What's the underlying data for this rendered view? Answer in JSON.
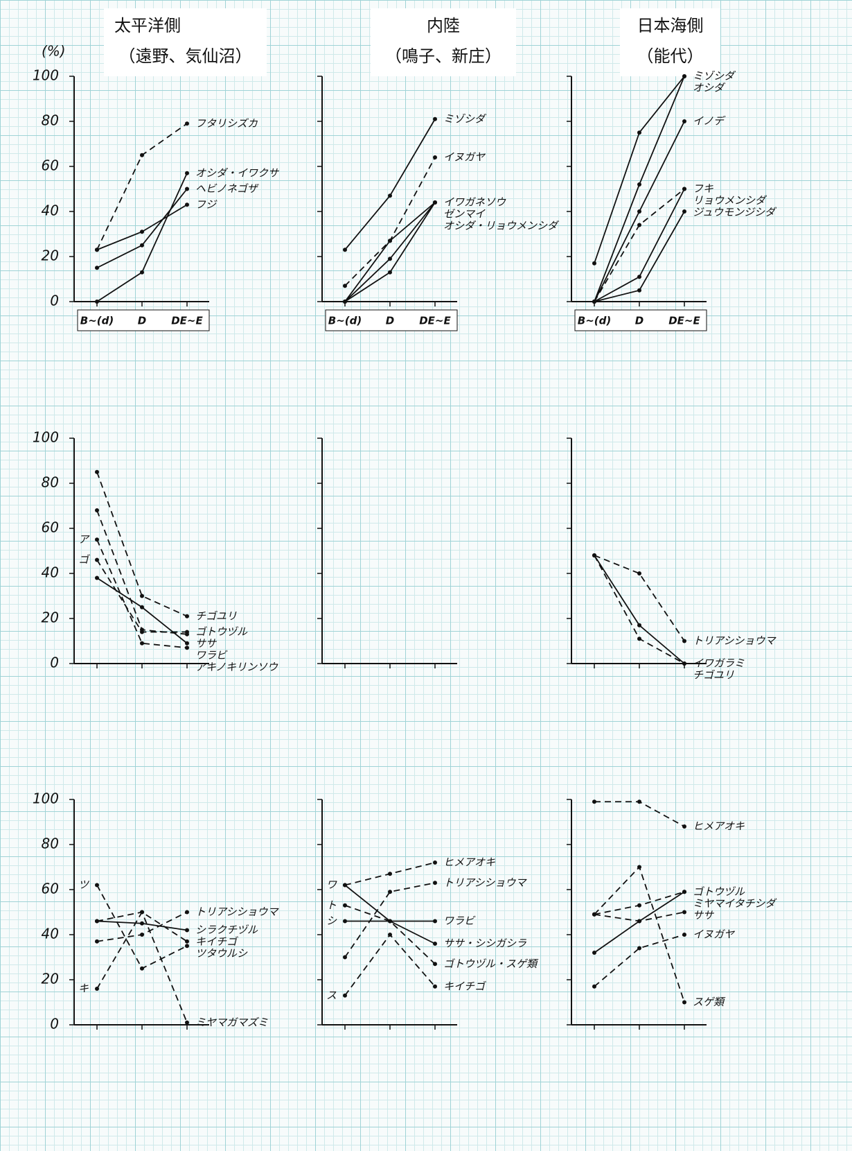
{
  "headers": [
    {
      "title": "太平洋側",
      "subtitle": "（遠野、気仙沼）"
    },
    {
      "title": "内陸",
      "subtitle": "（鳴子、新庄）"
    },
    {
      "title": "日本海側",
      "subtitle": "（能代）"
    }
  ],
  "y_unit": "(%)",
  "chart_data": [
    {
      "type": "line",
      "categories": [
        "B~(d)",
        "D",
        "DE~E"
      ],
      "ylim": [
        0,
        100
      ],
      "yticks": [
        0,
        20,
        40,
        60,
        80,
        100
      ],
      "ytick_labels": true,
      "series": [
        {
          "name": "フタリシズカ",
          "style": "dashed",
          "color": "#111",
          "values": [
            23,
            65,
            79
          ]
        },
        {
          "name": "オシダ・イワクサ",
          "style": "solid",
          "color": "#111",
          "values": [
            0,
            13,
            57
          ]
        },
        {
          "name": "ヘビノネゴザ",
          "style": "solid",
          "color": "#111",
          "values": [
            15,
            25,
            50
          ]
        },
        {
          "name": "フジ",
          "style": "solid",
          "color": "#111",
          "values": [
            23,
            31,
            43
          ]
        }
      ]
    },
    {
      "type": "line",
      "categories": [
        "B~(d)",
        "D",
        "DE~E"
      ],
      "ylim": [
        0,
        100
      ],
      "yticks": [
        0,
        20,
        40,
        60,
        80,
        100
      ],
      "ytick_labels": false,
      "series": [
        {
          "name": "ミゾシダ",
          "style": "solid",
          "color": "#111",
          "values": [
            23,
            47,
            81
          ]
        },
        {
          "name": "イヌガヤ",
          "style": "dashed",
          "color": "#111",
          "values": [
            7,
            27,
            64
          ]
        },
        {
          "name": "イワガネソウ",
          "style": "solid",
          "color": "#111",
          "values": [
            0,
            27,
            44
          ]
        },
        {
          "name": "ゼンマイ",
          "style": "solid",
          "color": "#111",
          "values": [
            0,
            19,
            44
          ]
        },
        {
          "name": "オシダ・リョウメンシダ",
          "style": "solid",
          "color": "#111",
          "values": [
            0,
            13,
            44
          ]
        }
      ]
    },
    {
      "type": "line",
      "categories": [
        "B~(d)",
        "D",
        "DE~E"
      ],
      "ylim": [
        0,
        100
      ],
      "yticks": [
        0,
        20,
        40,
        60,
        80,
        100
      ],
      "ytick_labels": false,
      "series": [
        {
          "name": "ミゾシダ",
          "style": "solid",
          "color": "#111",
          "values": [
            17,
            75,
            100
          ]
        },
        {
          "name": "オシダ",
          "style": "solid",
          "color": "#111",
          "values": [
            0,
            52,
            100
          ]
        },
        {
          "name": "イノデ",
          "style": "solid",
          "color": "#111",
          "values": [
            0,
            40,
            80
          ]
        },
        {
          "name": "フキ",
          "style": "dashed",
          "color": "#111",
          "values": [
            0,
            34,
            50
          ]
        },
        {
          "name": "リョウメンシダ",
          "style": "solid",
          "color": "#111",
          "values": [
            0,
            11,
            50
          ]
        },
        {
          "name": "ジュウモンジシダ",
          "style": "solid",
          "color": "#111",
          "values": [
            0,
            5,
            40
          ]
        }
      ]
    },
    {
      "type": "line",
      "categories": [
        null,
        null,
        null
      ],
      "ylim": [
        0,
        100
      ],
      "yticks": [
        0,
        20,
        40,
        60,
        80,
        100
      ],
      "ytick_labels": true,
      "start_labels": [
        {
          "text": "ア",
          "value": 55
        },
        {
          "text": "ゴ",
          "value": 46
        }
      ],
      "series": [
        {
          "name": "チゴユリ",
          "style": "dashed",
          "color": "#111",
          "values": [
            85,
            30,
            21
          ]
        },
        {
          "name": "ゴトウヅル",
          "style": "dashed",
          "color": "#111",
          "values": [
            46,
            14,
            14
          ]
        },
        {
          "name": "ササ",
          "style": "dashed",
          "color": "#111",
          "values": [
            68,
            15,
            13
          ]
        },
        {
          "name": "ワラビ",
          "style": "solid",
          "color": "#111",
          "values": [
            38,
            25,
            9
          ]
        },
        {
          "name": "アキノキリンソウ",
          "style": "dashed",
          "color": "#111",
          "values": [
            55,
            9,
            7
          ]
        }
      ]
    },
    {
      "type": "line",
      "categories": [
        null,
        null,
        null
      ],
      "ylim": [
        0,
        100
      ],
      "yticks": [
        0,
        20,
        40,
        60,
        80,
        100
      ],
      "ytick_labels": false,
      "series": []
    },
    {
      "type": "line",
      "categories": [
        null,
        null,
        null
      ],
      "ylim": [
        0,
        100
      ],
      "yticks": [
        0,
        20,
        40,
        60,
        80,
        100
      ],
      "ytick_labels": false,
      "series": [
        {
          "name": "トリアシショウマ",
          "style": "dashed",
          "color": "#111",
          "values": [
            48,
            40,
            10
          ]
        },
        {
          "name": "イワガラミ",
          "style": "solid",
          "color": "#111",
          "values": [
            48,
            17,
            0
          ]
        },
        {
          "name": "チゴユリ",
          "style": "dashed",
          "color": "#111",
          "values": [
            48,
            11,
            0
          ]
        }
      ]
    },
    {
      "type": "line",
      "categories": [
        null,
        null,
        null
      ],
      "ylim": [
        0,
        100
      ],
      "yticks": [
        0,
        20,
        40,
        60,
        80,
        100
      ],
      "ytick_labels": true,
      "start_labels": [
        {
          "text": "ツ",
          "value": 62
        },
        {
          "text": "キ",
          "value": 16
        }
      ],
      "series": [
        {
          "name": "トリアシショウマ",
          "style": "dashed",
          "color": "#111",
          "values": [
            37,
            40,
            50
          ]
        },
        {
          "name": "シラクチヅル",
          "style": "solid",
          "color": "#111",
          "values": [
            46,
            45,
            42
          ]
        },
        {
          "name": "キイチゴ",
          "style": "dashed",
          "color": "#111",
          "values": [
            16,
            50,
            37
          ]
        },
        {
          "name": "ツタウルシ",
          "style": "dashed",
          "color": "#111",
          "values": [
            62,
            25,
            35
          ]
        },
        {
          "name": "ミヤマガマズミ",
          "style": "dashed",
          "color": "#111",
          "values": [
            46,
            50,
            1
          ]
        }
      ]
    },
    {
      "type": "line",
      "categories": [
        null,
        null,
        null
      ],
      "ylim": [
        0,
        100
      ],
      "yticks": [
        0,
        20,
        40,
        60,
        80,
        100
      ],
      "ytick_labels": false,
      "start_labels": [
        {
          "text": "ワ",
          "value": 62
        },
        {
          "text": "ト",
          "value": 53
        },
        {
          "text": "シ",
          "value": 46
        },
        {
          "text": "ス",
          "value": 13
        }
      ],
      "series": [
        {
          "name": "ヒメアオキ",
          "style": "dashed",
          "color": "#111",
          "values": [
            62,
            67,
            72
          ]
        },
        {
          "name": "トリアシショウマ",
          "style": "dashed",
          "color": "#111",
          "values": [
            30,
            59,
            63
          ]
        },
        {
          "name": "ワラビ",
          "style": "solid",
          "color": "#111",
          "values": [
            46,
            46,
            46
          ]
        },
        {
          "name": "ササ・シシガシラ",
          "style": "solid",
          "color": "#111",
          "values": [
            62,
            46,
            36
          ]
        },
        {
          "name": "ゴトウヅル・スゲ類",
          "style": "dashed",
          "color": "#111",
          "values": [
            53,
            46,
            27
          ]
        },
        {
          "name": "キイチゴ",
          "style": "dashed",
          "color": "#111",
          "values": [
            13,
            40,
            17
          ]
        }
      ]
    },
    {
      "type": "line",
      "categories": [
        null,
        null,
        null
      ],
      "ylim": [
        0,
        100
      ],
      "yticks": [
        0,
        20,
        40,
        60,
        80,
        100
      ],
      "ytick_labels": false,
      "series": [
        {
          "name": "ヒメアオキ",
          "style": "dashed",
          "color": "#111",
          "values": [
            99,
            99,
            88
          ]
        },
        {
          "name": "ゴトウヅル",
          "style": "solid",
          "color": "#111",
          "values": [
            32,
            46,
            59
          ]
        },
        {
          "name": "ミヤマイタチシダ",
          "style": "dashed",
          "color": "#111",
          "values": [
            49,
            53,
            59
          ]
        },
        {
          "name": "ササ",
          "style": "dashed",
          "color": "#111",
          "values": [
            49,
            46,
            50
          ]
        },
        {
          "name": "イヌガヤ",
          "style": "dashed",
          "color": "#111",
          "values": [
            17,
            34,
            40
          ]
        },
        {
          "name": "スゲ類",
          "style": "dashed",
          "color": "#111",
          "values": [
            49,
            70,
            10
          ]
        }
      ]
    }
  ]
}
